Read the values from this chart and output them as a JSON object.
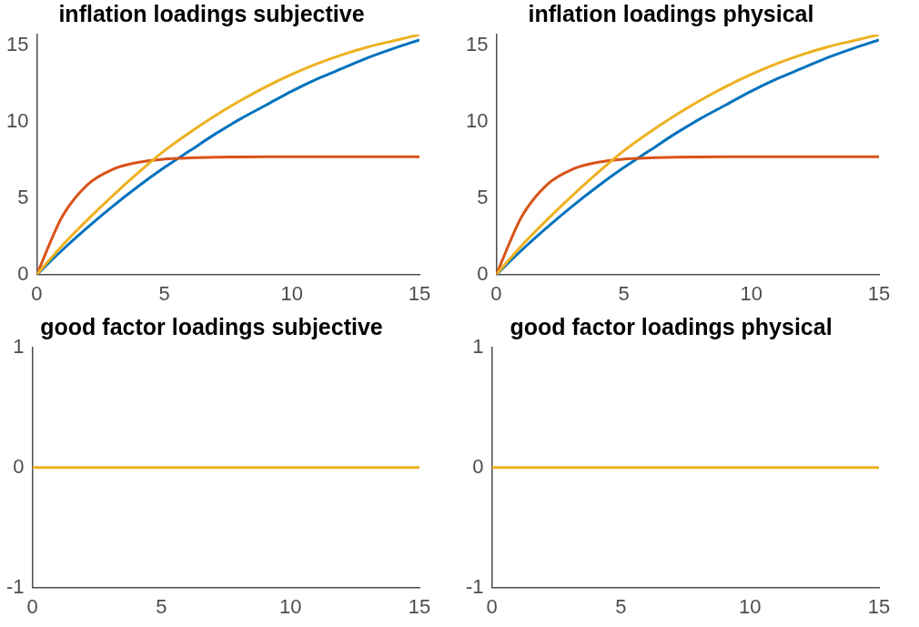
{
  "chart_data": [
    {
      "type": "line",
      "title": "inflation loadings subjective",
      "x": [
        0,
        1,
        2,
        3,
        4,
        5,
        6,
        7,
        8,
        9,
        10,
        11,
        12,
        13,
        14,
        15
      ],
      "xlim": [
        0,
        15
      ],
      "xticks": [
        0,
        5,
        10,
        15
      ],
      "ylim": [
        0,
        15.7
      ],
      "yticks": [
        0,
        5,
        10,
        15
      ],
      "grid": false,
      "legend": false,
      "marker": "none",
      "line_style": "solid",
      "series": [
        {
          "color": "#0072bd",
          "values": [
            0,
            1.6,
            3.1,
            4.5,
            5.8,
            7.0,
            8.1,
            9.2,
            10.2,
            11.1,
            12.0,
            12.8,
            13.5,
            14.2,
            14.8,
            15.35
          ]
        },
        {
          "color": "#d95319",
          "values": [
            0,
            3.8,
            5.9,
            6.9,
            7.35,
            7.55,
            7.63,
            7.67,
            7.69,
            7.7,
            7.7,
            7.7,
            7.7,
            7.7,
            7.7,
            7.7
          ]
        },
        {
          "color": "#edb120",
          "values": [
            0,
            1.9,
            3.6,
            5.2,
            6.7,
            8.1,
            9.3,
            10.4,
            11.4,
            12.3,
            13.1,
            13.8,
            14.4,
            14.9,
            15.3,
            15.7
          ]
        }
      ]
    },
    {
      "type": "line",
      "title": "inflation loadings physical",
      "x": [
        0,
        1,
        2,
        3,
        4,
        5,
        6,
        7,
        8,
        9,
        10,
        11,
        12,
        13,
        14,
        15
      ],
      "xlim": [
        0,
        15
      ],
      "xticks": [
        0,
        5,
        10,
        15
      ],
      "ylim": [
        0,
        15.7
      ],
      "yticks": [
        0,
        5,
        10,
        15
      ],
      "grid": false,
      "legend": false,
      "marker": "none",
      "line_style": "solid",
      "series": [
        {
          "color": "#0072bd",
          "values": [
            0,
            1.6,
            3.1,
            4.5,
            5.8,
            7.0,
            8.1,
            9.2,
            10.2,
            11.1,
            12.0,
            12.8,
            13.5,
            14.2,
            14.8,
            15.35
          ]
        },
        {
          "color": "#d95319",
          "values": [
            0,
            3.8,
            5.9,
            6.9,
            7.35,
            7.55,
            7.63,
            7.67,
            7.69,
            7.7,
            7.7,
            7.7,
            7.7,
            7.7,
            7.7,
            7.7
          ]
        },
        {
          "color": "#edb120",
          "values": [
            0,
            1.9,
            3.6,
            5.2,
            6.7,
            8.1,
            9.3,
            10.4,
            11.4,
            12.3,
            13.1,
            13.8,
            14.4,
            14.9,
            15.3,
            15.7
          ]
        }
      ]
    },
    {
      "type": "line",
      "title": "good factor loadings subjective",
      "x": [
        0,
        15
      ],
      "xlim": [
        0,
        15
      ],
      "xticks": [
        0,
        5,
        10,
        15
      ],
      "ylim": [
        -1,
        1
      ],
      "yticks": [
        -1,
        0,
        1
      ],
      "grid": false,
      "legend": false,
      "marker": "none",
      "line_style": "solid",
      "series": [
        {
          "color": "#edb120",
          "values": [
            0,
            0
          ]
        }
      ]
    },
    {
      "type": "line",
      "title": "good factor loadings physical",
      "x": [
        0,
        15
      ],
      "xlim": [
        0,
        15
      ],
      "xticks": [
        0,
        5,
        10,
        15
      ],
      "ylim": [
        -1,
        1
      ],
      "yticks": [
        -1,
        0,
        1
      ],
      "grid": false,
      "legend": false,
      "marker": "none",
      "line_style": "solid",
      "series": [
        {
          "color": "#edb120",
          "values": [
            0,
            0
          ]
        }
      ]
    }
  ]
}
